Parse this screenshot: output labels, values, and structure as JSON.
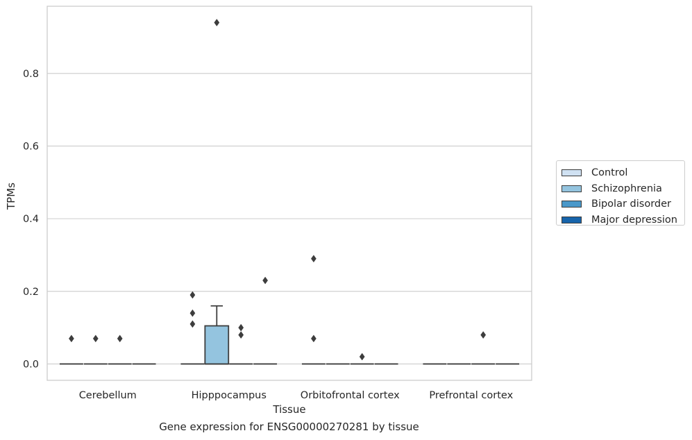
{
  "chart_data": {
    "type": "box",
    "xlabel": "Tissue",
    "ylabel": "TPMs",
    "ylim": [
      -0.045,
      0.985
    ],
    "yticks": [
      0.0,
      0.2,
      0.4,
      0.6,
      0.8
    ],
    "ytick_labels": [
      "0.0",
      "0.2",
      "0.4",
      "0.6",
      "0.8"
    ],
    "grid": "horizontal",
    "legend_placement": "right, outside plot",
    "categories": [
      "Cerebellum",
      "Hipppocampus",
      "Orbitofrontal cortex",
      "Prefrontal cortex"
    ],
    "series": [
      {
        "name": "Control",
        "color": "#d0e1f2",
        "boxes": [
          {
            "q1": 0,
            "median": 0,
            "q3": 0,
            "whisker_low": 0,
            "whisker_high": 0,
            "outliers": [
              0.07
            ]
          },
          {
            "q1": 0,
            "median": 0,
            "q3": 0,
            "whisker_low": 0,
            "whisker_high": 0,
            "outliers": [
              0.11,
              0.14,
              0.19
            ]
          },
          {
            "q1": 0,
            "median": 0,
            "q3": 0,
            "whisker_low": 0,
            "whisker_high": 0,
            "outliers": [
              0.07,
              0.29
            ]
          },
          {
            "q1": 0,
            "median": 0,
            "q3": 0,
            "whisker_low": 0,
            "whisker_high": 0,
            "outliers": []
          }
        ]
      },
      {
        "name": "Schizophrenia",
        "color": "#94c4df",
        "boxes": [
          {
            "q1": 0,
            "median": 0,
            "q3": 0,
            "whisker_low": 0,
            "whisker_high": 0,
            "outliers": [
              0.07
            ]
          },
          {
            "q1": 0,
            "median": 0,
            "q3": 0.105,
            "whisker_low": 0,
            "whisker_high": 0.16,
            "outliers": [
              0.94
            ]
          },
          {
            "q1": 0,
            "median": 0,
            "q3": 0,
            "whisker_low": 0,
            "whisker_high": 0,
            "outliers": []
          },
          {
            "q1": 0,
            "median": 0,
            "q3": 0,
            "whisker_low": 0,
            "whisker_high": 0,
            "outliers": []
          }
        ]
      },
      {
        "name": "Bipolar disorder",
        "color": "#4a98c9",
        "boxes": [
          {
            "q1": 0,
            "median": 0,
            "q3": 0,
            "whisker_low": 0,
            "whisker_high": 0,
            "outliers": [
              0.07
            ]
          },
          {
            "q1": 0,
            "median": 0,
            "q3": 0,
            "whisker_low": 0,
            "whisker_high": 0,
            "outliers": [
              0.08,
              0.1
            ]
          },
          {
            "q1": 0,
            "median": 0,
            "q3": 0,
            "whisker_low": 0,
            "whisker_high": 0,
            "outliers": [
              0.02
            ]
          },
          {
            "q1": 0,
            "median": 0,
            "q3": 0,
            "whisker_low": 0,
            "whisker_high": 0,
            "outliers": [
              0.08
            ]
          }
        ]
      },
      {
        "name": "Major depression",
        "color": "#1764ab",
        "boxes": [
          {
            "q1": 0,
            "median": 0,
            "q3": 0,
            "whisker_low": 0,
            "whisker_high": 0,
            "outliers": []
          },
          {
            "q1": 0,
            "median": 0,
            "q3": 0,
            "whisker_low": 0,
            "whisker_high": 0,
            "outliers": [
              0.23
            ]
          },
          {
            "q1": 0,
            "median": 0,
            "q3": 0,
            "whisker_low": 0,
            "whisker_high": 0,
            "outliers": []
          },
          {
            "q1": 0,
            "median": 0,
            "q3": 0,
            "whisker_low": 0,
            "whisker_high": 0,
            "outliers": []
          }
        ]
      }
    ]
  },
  "caption": "Gene expression for ENSG00000270281 by tissue"
}
